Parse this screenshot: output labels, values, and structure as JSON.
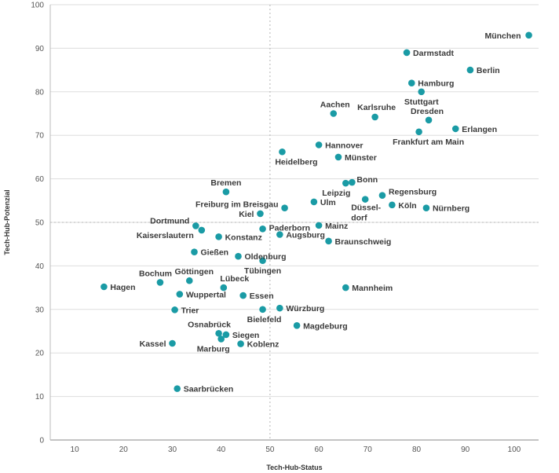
{
  "chart_data": {
    "type": "scatter",
    "xlabel": "Tech-Hub-Status",
    "ylabel": "Tech-Hub-Potenzial",
    "xlim": [
      5,
      105
    ],
    "ylim": [
      0,
      100
    ],
    "x_ticks": [
      "10",
      "20",
      "30",
      "40",
      "50",
      "60",
      "70",
      "80",
      "90",
      "100"
    ],
    "y_ticks": [
      "0",
      "10",
      "20",
      "30",
      "40",
      "50",
      "60",
      "70",
      "80",
      "90",
      "100"
    ],
    "reference_lines": {
      "x": 50,
      "y": 50
    },
    "grid": "horizontal",
    "marker_color": "#1a9ba5",
    "points": [
      {
        "label": "München",
        "x": 103,
        "y": 93
      },
      {
        "label": "Darmstadt",
        "x": 78,
        "y": 89
      },
      {
        "label": "Berlin",
        "x": 91,
        "y": 85
      },
      {
        "label": "Hamburg",
        "x": 79,
        "y": 82
      },
      {
        "label": "Stuttgart",
        "x": 81,
        "y": 80
      },
      {
        "label": "Aachen",
        "x": 63,
        "y": 75
      },
      {
        "label": "Karlsruhe",
        "x": 71.5,
        "y": 74.2
      },
      {
        "label": "Dresden",
        "x": 82.5,
        "y": 73.5
      },
      {
        "label": "Erlangen",
        "x": 88,
        "y": 71.5
      },
      {
        "label": "Frankfurt am Main",
        "x": 80.5,
        "y": 70.8
      },
      {
        "label": "Hannover",
        "x": 60,
        "y": 67.8
      },
      {
        "label": "Heidelberg",
        "x": 52.5,
        "y": 66.2
      },
      {
        "label": "Münster",
        "x": 64,
        "y": 65
      },
      {
        "label": "Bonn",
        "x": 66.8,
        "y": 59.2
      },
      {
        "label": "Leipzig",
        "x": 65.5,
        "y": 59
      },
      {
        "label": "Bremen",
        "x": 41,
        "y": 57
      },
      {
        "label": "Regensburg",
        "x": 73,
        "y": 56.2
      },
      {
        "label": "Düssel-dorf",
        "x": 69.5,
        "y": 55.3
      },
      {
        "label": "Ulm",
        "x": 59,
        "y": 54.7
      },
      {
        "label": "Freiburg im Breisgau",
        "x": 53,
        "y": 53.3
      },
      {
        "label": "Köln",
        "x": 75,
        "y": 54
      },
      {
        "label": "Nürnberg",
        "x": 82,
        "y": 53.3
      },
      {
        "label": "Kiel",
        "x": 48,
        "y": 52
      },
      {
        "label": "Dortmund",
        "x": 34.8,
        "y": 49.2
      },
      {
        "label": "Mainz",
        "x": 60,
        "y": 49.3
      },
      {
        "label": "Paderborn",
        "x": 48.5,
        "y": 48.5
      },
      {
        "label": "Kaiserslautern",
        "x": 36,
        "y": 48.2
      },
      {
        "label": "Augsburg",
        "x": 52,
        "y": 47.2
      },
      {
        "label": "Konstanz",
        "x": 39.5,
        "y": 46.7
      },
      {
        "label": "Braunschweig",
        "x": 62,
        "y": 45.7
      },
      {
        "label": "Gießen",
        "x": 34.5,
        "y": 43.2
      },
      {
        "label": "Oldenburg",
        "x": 43.5,
        "y": 42.2
      },
      {
        "label": "Tübingen",
        "x": 48.5,
        "y": 41.2
      },
      {
        "label": "Göttingen",
        "x": 33.5,
        "y": 36.6
      },
      {
        "label": "Bochum",
        "x": 27.5,
        "y": 36.2
      },
      {
        "label": "Hagen",
        "x": 16,
        "y": 35.2
      },
      {
        "label": "Lübeck",
        "x": 40.5,
        "y": 35
      },
      {
        "label": "Mannheim",
        "x": 65.5,
        "y": 35
      },
      {
        "label": "Wuppertal",
        "x": 31.5,
        "y": 33.5
      },
      {
        "label": "Essen",
        "x": 44.5,
        "y": 33.2
      },
      {
        "label": "Trier",
        "x": 30.5,
        "y": 29.9
      },
      {
        "label": "Bielefeld",
        "x": 48.5,
        "y": 30
      },
      {
        "label": "Würzburg",
        "x": 52,
        "y": 30.3
      },
      {
        "label": "Magdeburg",
        "x": 55.5,
        "y": 26.3
      },
      {
        "label": "Osnabrück",
        "x": 39.5,
        "y": 24.5
      },
      {
        "label": "Siegen",
        "x": 41,
        "y": 24.2
      },
      {
        "label": "Marburg",
        "x": 40,
        "y": 23.2
      },
      {
        "label": "Kassel",
        "x": 30,
        "y": 22.2
      },
      {
        "label": "Koblenz",
        "x": 44,
        "y": 22.1
      },
      {
        "label": "Saarbrücken",
        "x": 31,
        "y": 11.8
      }
    ]
  }
}
